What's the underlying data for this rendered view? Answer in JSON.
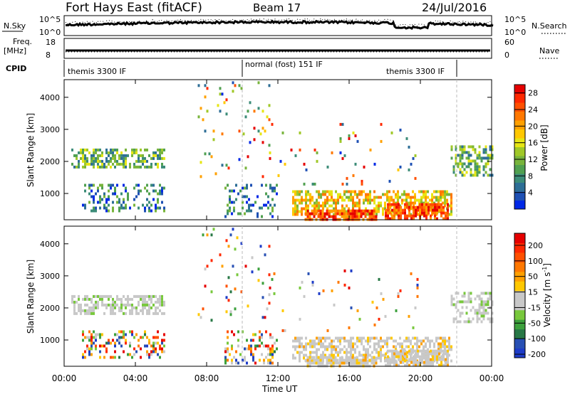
{
  "header": {
    "title": "Fort Hays East (fitACF)",
    "beam": "Beam 17",
    "date": "24/Jul/2016"
  },
  "panels": {
    "nsky_label": "N.Sky",
    "nsearch_label": "N.Search",
    "noise_ticks_left": [
      "10^5",
      "10^0"
    ],
    "noise_ticks_right": [
      "10^5",
      "10^0"
    ],
    "freq_label": "Freq.",
    "freq_unit": "[MHz]",
    "freq_ticks": [
      "18",
      "8"
    ],
    "nave_label": "Nave",
    "nave_ticks": [
      "60",
      "0"
    ],
    "cpid_label": "CPID",
    "cpid_segments": [
      "themis 3300 IF",
      "normal (fost) 151 IF",
      "themis 3300 IF"
    ]
  },
  "colors": {
    "power_scale": [
      "#0028e6",
      "#1e50b4",
      "#2d6e96",
      "#3c8c78",
      "#50a050",
      "#78b43c",
      "#a0c828",
      "#e6e614",
      "#ffc800",
      "#ffa000",
      "#ff7800",
      "#ff5000",
      "#ff2800",
      "#e60000"
    ],
    "velocity_scale": [
      "#1e3cc8",
      "#2850b4",
      "#287846",
      "#3ca03c",
      "#78c83c",
      "#c8c8c8",
      "#c8c8c8",
      "#ffc800",
      "#ffa000",
      "#ff7800",
      "#ff5000",
      "#ff2800",
      "#e60000"
    ]
  },
  "chart_data": [
    {
      "type": "heatmap",
      "title": "",
      "xlabel": "",
      "ylabel": "Slant Range [km]",
      "xlim": [
        "00:00",
        "24:00"
      ],
      "ylim": [
        180,
        4550
      ],
      "x_ticks": [
        "00:00",
        "04:00",
        "08:00",
        "12:00",
        "16:00",
        "20:00",
        "00:00"
      ],
      "y_ticks": [
        "1000",
        "2000",
        "3000",
        "4000"
      ],
      "colorbar_label": "Power [dB]",
      "colorbar_ticks": [
        "4",
        "8",
        "12",
        "16",
        "20",
        "24",
        "28"
      ],
      "colorbar_range": [
        0,
        30
      ]
    },
    {
      "type": "heatmap",
      "title": "",
      "xlabel": "Time UT",
      "ylabel": "Slant Range [km]",
      "xlim": [
        "00:00",
        "24:00"
      ],
      "ylim": [
        180,
        4550
      ],
      "x_ticks": [
        "00:00",
        "04:00",
        "08:00",
        "12:00",
        "16:00",
        "20:00",
        "00:00"
      ],
      "y_ticks": [
        "1000",
        "2000",
        "3000",
        "4000"
      ],
      "colorbar_label": "Velocity [m s^-1]",
      "colorbar_ticks": [
        "200",
        "100",
        "50",
        "15",
        "-15",
        "-50",
        "-100",
        "-200"
      ]
    }
  ]
}
